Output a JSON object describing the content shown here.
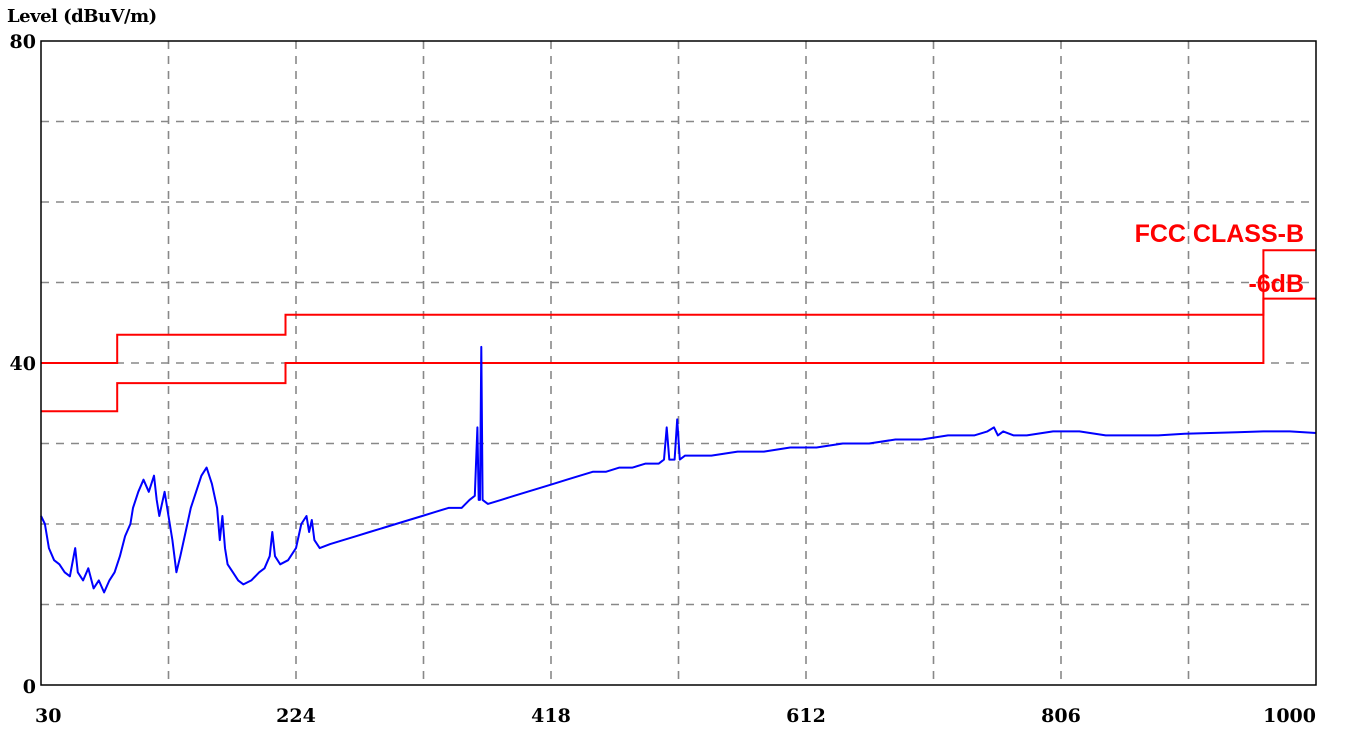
{
  "chart_data": {
    "type": "line",
    "ylabel": "Level (dBuV/m)",
    "xlabel": "",
    "xlim": [
      30,
      1000
    ],
    "ylim": [
      0,
      80
    ],
    "x_ticks": [
      30,
      224,
      418,
      612,
      806,
      1000
    ],
    "y_ticks": [
      0,
      40,
      80
    ],
    "grid": true,
    "colors": {
      "measurement": "#0000ff",
      "limit": "#ff0000",
      "grid": "#888888"
    },
    "annotations": [
      "FCC CLASS-B",
      "-6dB"
    ],
    "limit_lines": [
      {
        "label": "FCC CLASS-B",
        "points": [
          [
            30,
            40
          ],
          [
            88,
            40
          ],
          [
            88,
            43.5
          ],
          [
            216,
            43.5
          ],
          [
            216,
            46
          ],
          [
            960,
            46
          ],
          [
            960,
            54
          ],
          [
            1000,
            54
          ]
        ]
      },
      {
        "label": "-6dB",
        "points": [
          [
            30,
            34
          ],
          [
            88,
            34
          ],
          [
            88,
            37.5
          ],
          [
            216,
            37.5
          ],
          [
            216,
            40
          ],
          [
            960,
            40
          ],
          [
            960,
            48
          ],
          [
            1000,
            48
          ]
        ]
      }
    ],
    "series": [
      {
        "values": [
          [
            30,
            21
          ],
          [
            33,
            20
          ],
          [
            36,
            17
          ],
          [
            40,
            15.5
          ],
          [
            44,
            15
          ],
          [
            48,
            14
          ],
          [
            52,
            13.5
          ],
          [
            56,
            17
          ],
          [
            58,
            14
          ],
          [
            62,
            13
          ],
          [
            66,
            14.5
          ],
          [
            70,
            12
          ],
          [
            74,
            13
          ],
          [
            78,
            11.5
          ],
          [
            82,
            13
          ],
          [
            86,
            14
          ],
          [
            90,
            16
          ],
          [
            94,
            18.5
          ],
          [
            98,
            20
          ],
          [
            100,
            22
          ],
          [
            104,
            24
          ],
          [
            108,
            25.5
          ],
          [
            112,
            24
          ],
          [
            116,
            26
          ],
          [
            118,
            23
          ],
          [
            120,
            21
          ],
          [
            124,
            24
          ],
          [
            127,
            21
          ],
          [
            130,
            18
          ],
          [
            133,
            14
          ],
          [
            136,
            16
          ],
          [
            140,
            19
          ],
          [
            144,
            22
          ],
          [
            148,
            24
          ],
          [
            152,
            26
          ],
          [
            156,
            27
          ],
          [
            160,
            25
          ],
          [
            164,
            22
          ],
          [
            166,
            18
          ],
          [
            168,
            21
          ],
          [
            170,
            17
          ],
          [
            172,
            15
          ],
          [
            176,
            14
          ],
          [
            180,
            13
          ],
          [
            184,
            12.5
          ],
          [
            190,
            13
          ],
          [
            196,
            14
          ],
          [
            200,
            14.5
          ],
          [
            204,
            16
          ],
          [
            206,
            19
          ],
          [
            208,
            16
          ],
          [
            212,
            15
          ],
          [
            218,
            15.5
          ],
          [
            224,
            17
          ],
          [
            228,
            20
          ],
          [
            232,
            21
          ],
          [
            234,
            19
          ],
          [
            236,
            20.5
          ],
          [
            238,
            18
          ],
          [
            242,
            17
          ],
          [
            250,
            17.5
          ],
          [
            260,
            18
          ],
          [
            270,
            18.5
          ],
          [
            280,
            19
          ],
          [
            290,
            19.5
          ],
          [
            300,
            20
          ],
          [
            310,
            20.5
          ],
          [
            320,
            21
          ],
          [
            330,
            21.5
          ],
          [
            340,
            22
          ],
          [
            350,
            22
          ],
          [
            356,
            23
          ],
          [
            360,
            23.5
          ],
          [
            362,
            32
          ],
          [
            363,
            23
          ],
          [
            364,
            23
          ],
          [
            365,
            42
          ],
          [
            366,
            23
          ],
          [
            370,
            22.5
          ],
          [
            380,
            23
          ],
          [
            390,
            23.5
          ],
          [
            400,
            24
          ],
          [
            410,
            24.5
          ],
          [
            420,
            25
          ],
          [
            430,
            25.5
          ],
          [
            440,
            26
          ],
          [
            450,
            26.5
          ],
          [
            460,
            26.5
          ],
          [
            470,
            27
          ],
          [
            480,
            27
          ],
          [
            490,
            27.5
          ],
          [
            500,
            27.5
          ],
          [
            504,
            28
          ],
          [
            506,
            32
          ],
          [
            508,
            28
          ],
          [
            512,
            28
          ],
          [
            514,
            33
          ],
          [
            516,
            28
          ],
          [
            520,
            28.5
          ],
          [
            540,
            28.5
          ],
          [
            560,
            29
          ],
          [
            580,
            29
          ],
          [
            600,
            29.5
          ],
          [
            620,
            29.5
          ],
          [
            640,
            30
          ],
          [
            660,
            30
          ],
          [
            680,
            30.5
          ],
          [
            700,
            30.5
          ],
          [
            720,
            31
          ],
          [
            740,
            31
          ],
          [
            750,
            31.5
          ],
          [
            755,
            32
          ],
          [
            758,
            31
          ],
          [
            762,
            31.5
          ],
          [
            770,
            31
          ],
          [
            780,
            31
          ],
          [
            800,
            31.5
          ],
          [
            820,
            31.5
          ],
          [
            840,
            31
          ],
          [
            860,
            31
          ],
          [
            880,
            31
          ],
          [
            900,
            31.2
          ],
          [
            920,
            31.3
          ],
          [
            940,
            31.4
          ],
          [
            960,
            31.5
          ],
          [
            980,
            31.5
          ],
          [
            1000,
            31.3
          ]
        ]
      }
    ]
  }
}
